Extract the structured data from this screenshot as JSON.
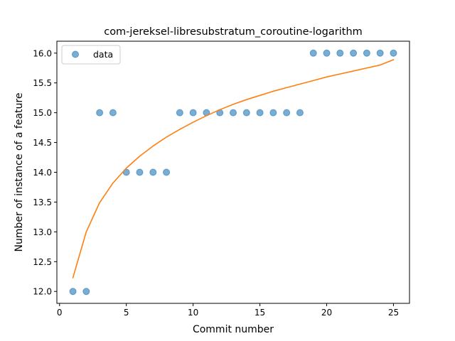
{
  "chart_data": {
    "type": "scatter",
    "title": "com-jereksel-libresubstratum_coroutine-logarithm",
    "xlabel": "Commit number",
    "ylabel": "Number of instance of a feature",
    "xlim": [
      -0.2,
      26.2
    ],
    "ylim": [
      11.8,
      16.2
    ],
    "xticks": [
      0,
      5,
      10,
      15,
      20,
      25
    ],
    "xtick_labels": [
      "0",
      "5",
      "10",
      "15",
      "20",
      "25"
    ],
    "yticks": [
      12.0,
      12.5,
      13.0,
      13.5,
      14.0,
      14.5,
      15.0,
      15.5,
      16.0
    ],
    "ytick_labels": [
      "12.0",
      "12.5",
      "13.0",
      "13.5",
      "14.0",
      "14.5",
      "15.0",
      "15.5",
      "16.0"
    ],
    "grid": false,
    "legend_placement": "top-left",
    "series": [
      {
        "name": "data",
        "kind": "scatter",
        "color": "#1f77b4",
        "x": [
          1,
          2,
          3,
          4,
          5,
          6,
          7,
          8,
          9,
          10,
          11,
          12,
          13,
          14,
          15,
          16,
          17,
          18,
          19,
          20,
          21,
          22,
          23,
          24,
          25
        ],
        "y": [
          12,
          12,
          15,
          15,
          14,
          14,
          14,
          14,
          15,
          15,
          15,
          15,
          15,
          15,
          15,
          15,
          15,
          15,
          16,
          16,
          16,
          16,
          16,
          16,
          16
        ]
      },
      {
        "kind": "line",
        "color": "#ff7f0e",
        "x": [
          1,
          2,
          3,
          4,
          5,
          6,
          7,
          8,
          9,
          10,
          11,
          12,
          13,
          14,
          15,
          16,
          17,
          18,
          19,
          20,
          21,
          22,
          23,
          24,
          25
        ],
        "y": [
          12.23,
          13.0,
          13.49,
          13.82,
          14.07,
          14.27,
          14.44,
          14.59,
          14.72,
          14.84,
          14.95,
          15.05,
          15.14,
          15.22,
          15.29,
          15.36,
          15.42,
          15.48,
          15.54,
          15.6,
          15.65,
          15.7,
          15.75,
          15.8,
          15.89
        ]
      }
    ]
  }
}
